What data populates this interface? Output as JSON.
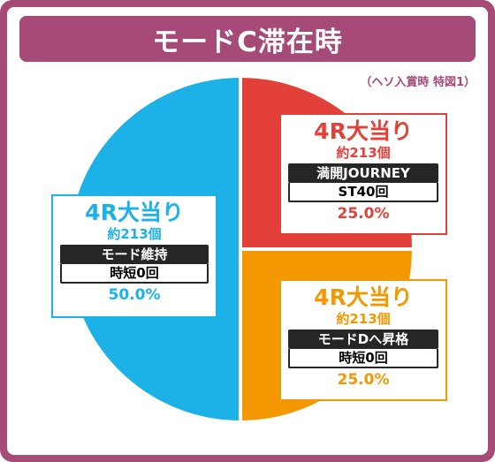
{
  "title": "モードC滞在時",
  "note": "（ヘソ入賞時 特図1）",
  "colors": {
    "frame": "#a64b77",
    "blue": "#1cb2e8",
    "red": "#e4403a",
    "orange": "#f39800"
  },
  "chart_data": {
    "type": "pie",
    "title": "モードC滞在時",
    "slices": [
      {
        "title": "4R大当り",
        "count": "約213個",
        "mode": "モード維持",
        "jitan": "時短0回",
        "percent_label": "50.0%",
        "value": 50.0,
        "color": "#1cb2e8"
      },
      {
        "title": "4R大当り",
        "count": "約213個",
        "mode": "満開JOURNEY",
        "jitan": "ST40回",
        "percent_label": "25.0%",
        "value": 25.0,
        "color": "#e4403a"
      },
      {
        "title": "4R大当り",
        "count": "約213個",
        "mode": "モードDへ昇格",
        "jitan": "時短0回",
        "percent_label": "25.0%",
        "value": 25.0,
        "color": "#f39800"
      }
    ]
  }
}
